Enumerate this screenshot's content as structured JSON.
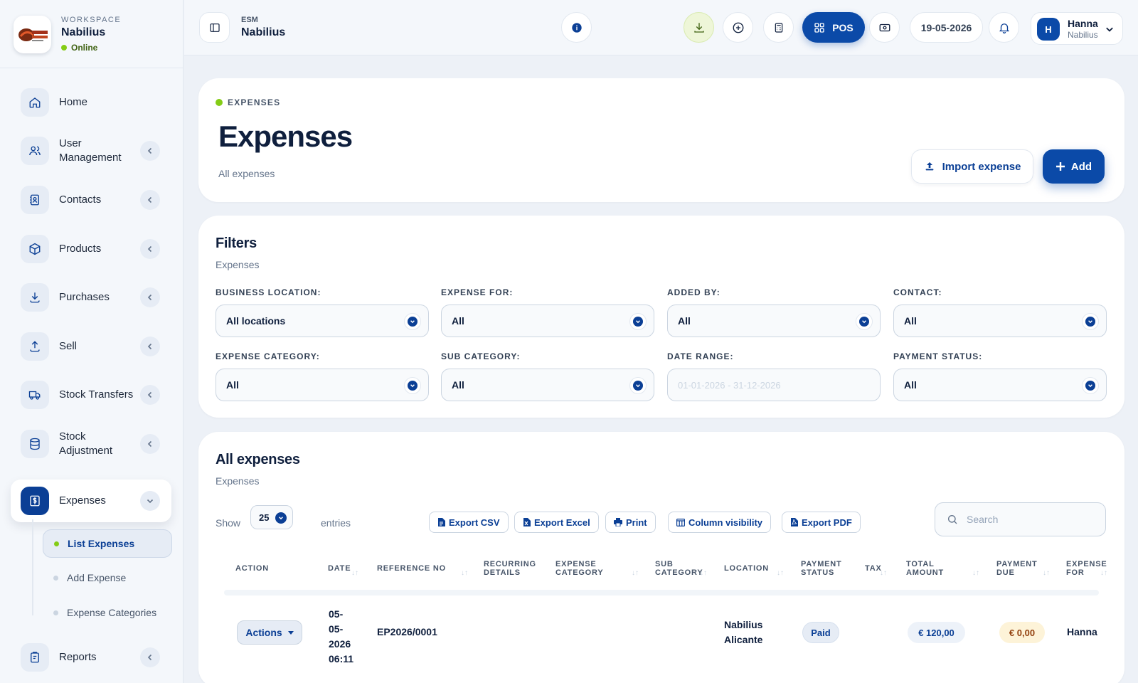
{
  "workspace": {
    "eyebrow": "WORKSPACE",
    "name": "Nabilius",
    "status": "Online",
    "logo_text": "NABILIUS"
  },
  "sidebar": {
    "items": [
      {
        "label": "Home",
        "icon": "home-icon"
      },
      {
        "label": "User Management",
        "icon": "users-icon"
      },
      {
        "label": "Contacts",
        "icon": "contacts-icon"
      },
      {
        "label": "Products",
        "icon": "box-icon"
      },
      {
        "label": "Purchases",
        "icon": "download-icon"
      },
      {
        "label": "Sell",
        "icon": "upload-icon"
      },
      {
        "label": "Stock Transfers",
        "icon": "truck-icon"
      },
      {
        "label": "Stock Adjustment",
        "icon": "database-icon"
      },
      {
        "label": "Expenses",
        "icon": "receipt-dollar-icon"
      },
      {
        "label": "Reports",
        "icon": "clipboard-icon"
      }
    ],
    "sub_items": [
      {
        "label": "List Expenses"
      },
      {
        "label": "Add Expense"
      },
      {
        "label": "Expense Categories"
      }
    ]
  },
  "topbar": {
    "eyebrow": "ESM",
    "title": "Nabilius",
    "pos_label": "POS",
    "date": "19-05-2026",
    "user_name": "Hanna",
    "user_sub": "Nabilius",
    "user_initial": "H"
  },
  "header": {
    "eyebrow": "EXPENSES",
    "title": "Expenses",
    "subtitle": "All expenses",
    "import_label": "Import expense",
    "add_label": "Add"
  },
  "filters": {
    "title": "Filters",
    "subtitle": "Expenses",
    "fields": [
      {
        "label": "BUSINESS LOCATION:",
        "value": "All locations"
      },
      {
        "label": "EXPENSE FOR:",
        "value": "All"
      },
      {
        "label": "ADDED BY:",
        "value": "All"
      },
      {
        "label": "CONTACT:",
        "value": "All"
      },
      {
        "label": "EXPENSE CATEGORY:",
        "value": "All"
      },
      {
        "label": "SUB CATEGORY:",
        "value": "All"
      },
      {
        "label": "DATE RANGE:",
        "value": "01-01-2026 - 31-12-2026"
      },
      {
        "label": "PAYMENT STATUS:",
        "value": "All"
      }
    ]
  },
  "table": {
    "title": "All expenses",
    "subtitle": "Expenses",
    "show_label": "Show",
    "entries_value": "25",
    "entries_label": "entries",
    "buttons": [
      "Export CSV",
      "Export Excel",
      "Print",
      "Column visibility",
      "Export PDF"
    ],
    "search_placeholder": "Search",
    "columns": [
      {
        "line1": "ACTION",
        "line2": ""
      },
      {
        "line1": "DATE",
        "line2": ""
      },
      {
        "line1": "REFERENCE NO",
        "line2": ""
      },
      {
        "line1": "RECURRING",
        "line2": "DETAILS"
      },
      {
        "line1": "EXPENSE",
        "line2": "CATEGORY"
      },
      {
        "line1": "SUB",
        "line2": "CATEGORY"
      },
      {
        "line1": "LOCATION",
        "line2": ""
      },
      {
        "line1": "PAYMENT",
        "line2": "STATUS"
      },
      {
        "line1": "TAX",
        "line2": ""
      },
      {
        "line1": "TOTAL",
        "line2": "AMOUNT"
      },
      {
        "line1": "PAYMENT",
        "line2": "DUE"
      },
      {
        "line1": "EXPENSE",
        "line2": "FOR"
      }
    ],
    "rows": [
      {
        "action": "Actions",
        "date": [
          "05-",
          "05-",
          "2026",
          "06:11"
        ],
        "reference": "EP2026/0001",
        "location": [
          "Nabilius",
          "Alicante"
        ],
        "payment_status": "Paid",
        "total": "€ 120,00",
        "due": "€ 0,00",
        "expense_for": "Hanna"
      }
    ]
  },
  "colors": {
    "brand": "#0b4aa8",
    "accent_green": "#84cc16",
    "due_bg": "#fdf3d8",
    "due_text": "#92400e"
  }
}
